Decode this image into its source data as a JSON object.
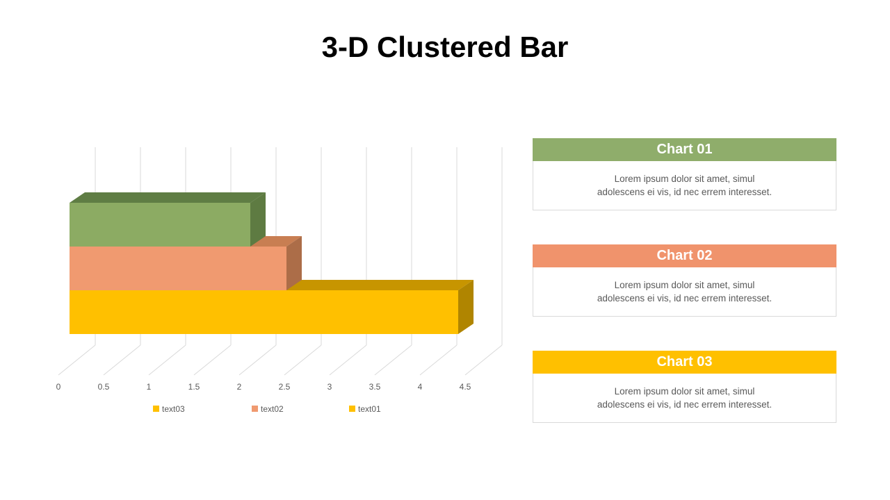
{
  "page": {
    "title": "3-D Clustered Bar",
    "background_color": "#FFFFFF"
  },
  "chart_data": {
    "type": "bar",
    "orientation": "horizontal",
    "title": "",
    "categories": [
      ""
    ],
    "series": [
      {
        "name": "text03",
        "value": 2.0,
        "color_front": "#8CAB63",
        "color_top": "#5F7D44",
        "color_side": "#5E7B42",
        "legend_color": "#FFC000"
      },
      {
        "name": "text02",
        "value": 2.4,
        "color_front": "#F09A70",
        "color_top": "#C87E52",
        "color_side": "#AC6D48",
        "legend_color": "#F09A70"
      },
      {
        "name": "text01",
        "value": 4.3,
        "color_front": "#FFC000",
        "color_top": "#C79500",
        "color_side": "#B08500",
        "legend_color": "#FFC000"
      }
    ],
    "x_ticks": [
      "0",
      "0.5",
      "1",
      "1.5",
      "2",
      "2.5",
      "3",
      "3.5",
      "4",
      "4.5"
    ],
    "xlim": [
      0,
      4.5
    ],
    "tick_step": 0.5,
    "gridlines": true,
    "gridline_color": "#D9D9D9",
    "axis_text_color": "#595959",
    "legend_position": "bottom",
    "legend_order": [
      "text03",
      "text02",
      "text01"
    ]
  },
  "cards": [
    {
      "title": "Chart 01",
      "header_color": "#8FAD6B",
      "lines": [
        "Lorem ipsum dolor sit amet, simul",
        "adolescens ei vis, id nec errem interesset."
      ]
    },
    {
      "title": "Chart 02",
      "header_color": "#F0936C",
      "lines": [
        "Lorem ipsum dolor sit amet, simul",
        "adolescens ei vis, id nec errem interesset."
      ]
    },
    {
      "title": "Chart 03",
      "header_color": "#FFC000",
      "lines": [
        "Lorem ipsum dolor sit amet, simul",
        "adolescens ei vis, id nec errem interesset."
      ]
    }
  ]
}
